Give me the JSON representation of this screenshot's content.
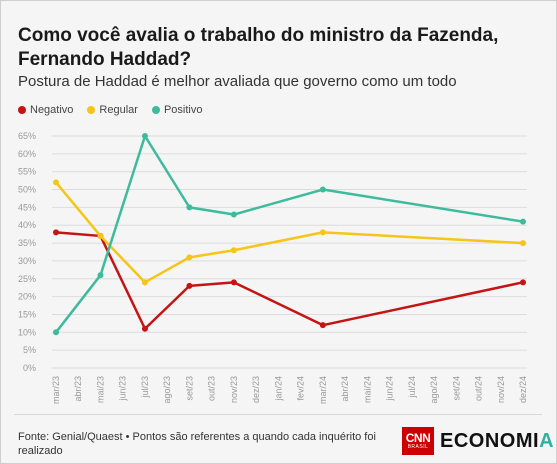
{
  "title": "Como você avalia o trabalho do ministro da Fazenda, Fernando Haddad?",
  "subtitle": "Postura de Haddad é melhor avaliada que governo como um todo",
  "footer": {
    "source": "Fonte: Genial/Quaest • Pontos são referentes a quando cada inquérito foi realizado",
    "brand_cnn": "CNN",
    "brand_cnn_sub": "BRASIL",
    "brand_name_main": "ECONOMI",
    "brand_name_accent": "A"
  },
  "colors": {
    "negativo": "#c41414",
    "regular": "#f5c518",
    "positivo": "#3dbb9c",
    "grid": "#dcdcdc",
    "axis_text": "#999999"
  },
  "chart_data": {
    "type": "line",
    "x": [
      "mar/23",
      "abr/23",
      "mai/23",
      "jun/23",
      "jul/23",
      "ago/23",
      "set/23",
      "out/23",
      "nov/23",
      "dez/23",
      "jan/24",
      "fev/24",
      "mar/24",
      "abr/24",
      "mai/24",
      "jun/24",
      "jul/24",
      "ago/24",
      "set/24",
      "out/24",
      "nov/24",
      "dez/24"
    ],
    "yticks": [
      "0%",
      "5%",
      "10%",
      "15%",
      "20%",
      "25%",
      "30%",
      "35%",
      "40%",
      "45%",
      "50%",
      "55%",
      "60%",
      "65%"
    ],
    "ylim": [
      0,
      65
    ],
    "series": [
      {
        "name": "Negativo",
        "color": "#c41414",
        "points": [
          [
            "mar/23",
            38
          ],
          [
            "mai/23",
            37
          ],
          [
            "jul/23",
            11
          ],
          [
            "set/23",
            23
          ],
          [
            "nov/23",
            24
          ],
          [
            "mar/24",
            12
          ],
          [
            "dez/24",
            24
          ]
        ]
      },
      {
        "name": "Regular",
        "color": "#f5c518",
        "points": [
          [
            "mar/23",
            52
          ],
          [
            "mai/23",
            37
          ],
          [
            "jul/23",
            24
          ],
          [
            "set/23",
            31
          ],
          [
            "nov/23",
            33
          ],
          [
            "mar/24",
            38
          ],
          [
            "dez/24",
            35
          ]
        ]
      },
      {
        "name": "Positivo",
        "color": "#3dbb9c",
        "points": [
          [
            "mar/23",
            10
          ],
          [
            "mai/23",
            26
          ],
          [
            "jul/23",
            65
          ],
          [
            "set/23",
            45
          ],
          [
            "nov/23",
            43
          ],
          [
            "mar/24",
            50
          ],
          [
            "dez/24",
            41
          ]
        ]
      }
    ],
    "legend_position": "top-left",
    "grid": true
  }
}
